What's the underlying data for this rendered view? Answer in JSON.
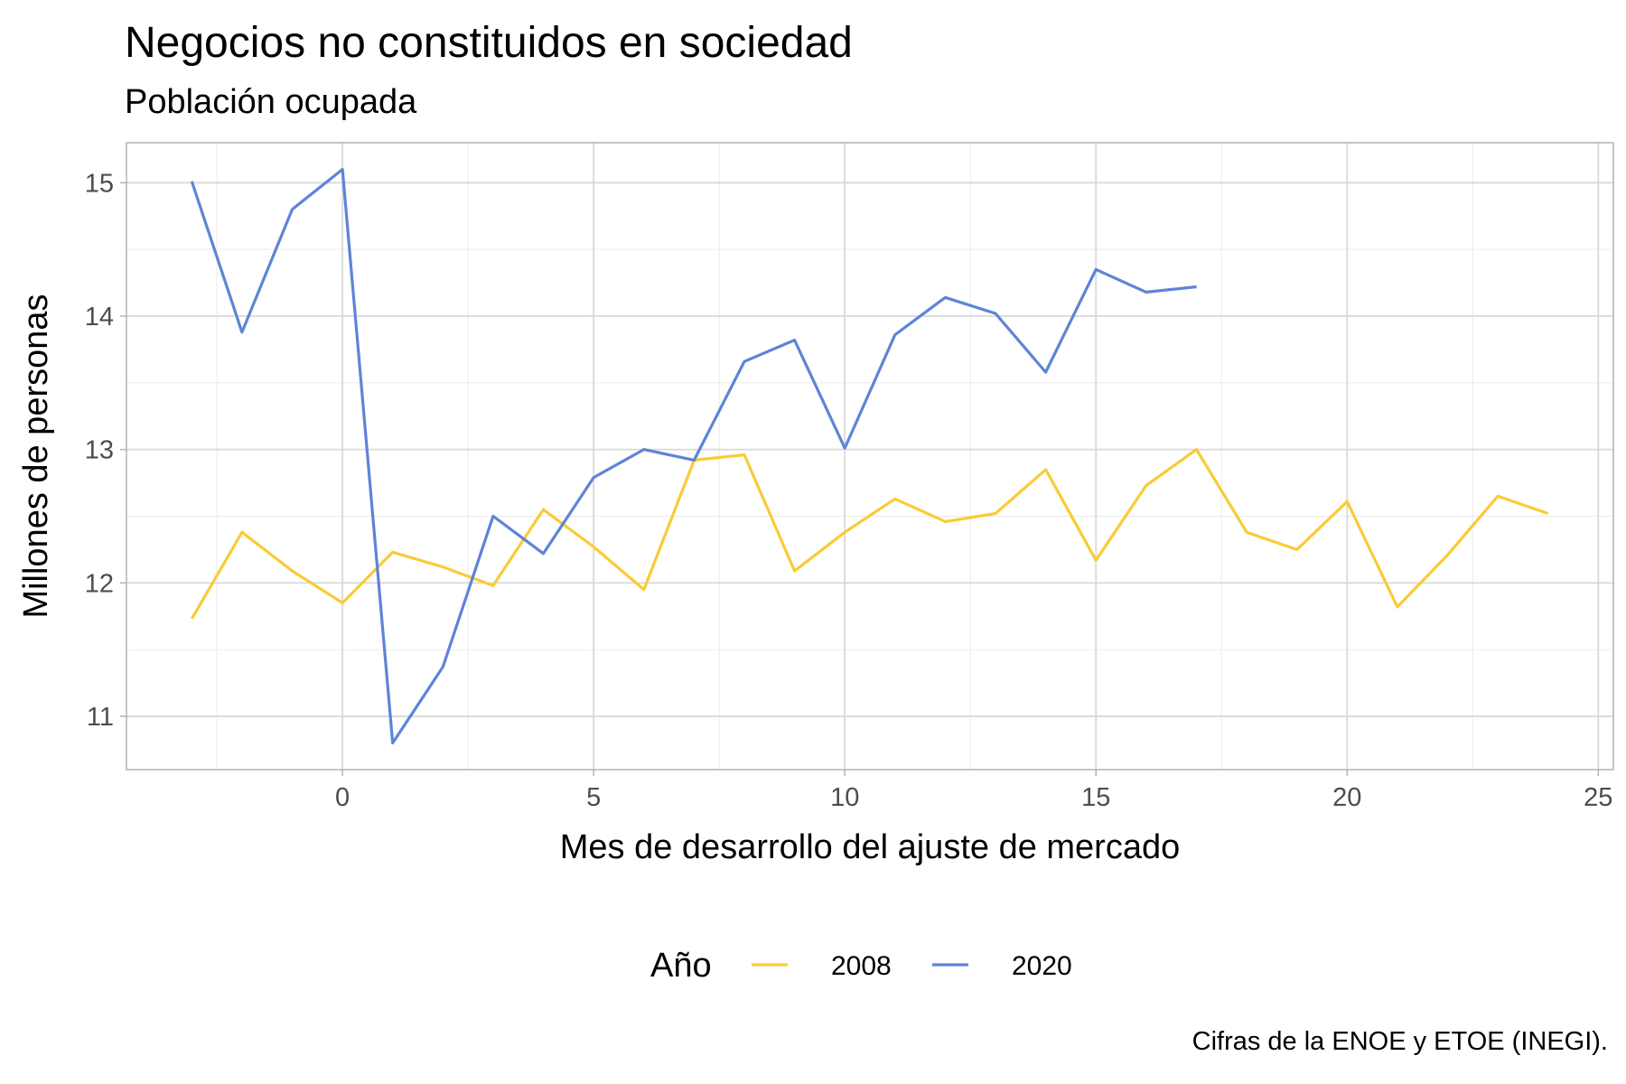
{
  "chart_data": {
    "type": "line",
    "title": "Negocios no constituidos en sociedad",
    "subtitle": "Población ocupada",
    "xlabel": "Mes de desarrollo del ajuste de mercado",
    "ylabel": "Millones de personas",
    "caption": "Cifras de la ENOE y ETOE (INEGI).",
    "xlim": [
      -4.3,
      25.3
    ],
    "ylim": [
      10.6,
      15.3
    ],
    "x_ticks": [
      0,
      5,
      10,
      15,
      20,
      25
    ],
    "y_ticks": [
      11,
      12,
      13,
      14,
      15
    ],
    "grid": true,
    "legend": {
      "title": "Año",
      "position": "bottom"
    },
    "series": [
      {
        "name": "2008",
        "color": "#f9cb36",
        "x": [
          -3,
          -2,
          -1,
          0,
          1,
          2,
          3,
          4,
          5,
          6,
          7,
          8,
          9,
          10,
          11,
          12,
          13,
          14,
          15,
          16,
          17,
          18,
          19,
          20,
          21,
          22,
          23,
          24
        ],
        "y": [
          11.73,
          12.38,
          12.09,
          11.85,
          12.23,
          12.12,
          11.98,
          12.55,
          12.27,
          11.95,
          12.92,
          12.96,
          12.09,
          12.38,
          12.63,
          12.46,
          12.52,
          12.85,
          12.17,
          12.73,
          13.0,
          12.38,
          12.25,
          12.61,
          11.82,
          12.21,
          12.65,
          12.52
        ]
      },
      {
        "name": "2020",
        "color": "#5e84d7",
        "x": [
          -3,
          -2,
          -1,
          0,
          1,
          2,
          3,
          4,
          5,
          6,
          7,
          8,
          9,
          10,
          11,
          12,
          13,
          14,
          15,
          16,
          17
        ],
        "y": [
          15.01,
          13.88,
          14.8,
          15.1,
          10.8,
          11.37,
          12.5,
          12.22,
          12.79,
          13.0,
          12.92,
          13.66,
          13.82,
          13.01,
          13.86,
          14.14,
          14.02,
          13.58,
          14.35,
          14.18,
          14.22
        ]
      }
    ]
  }
}
